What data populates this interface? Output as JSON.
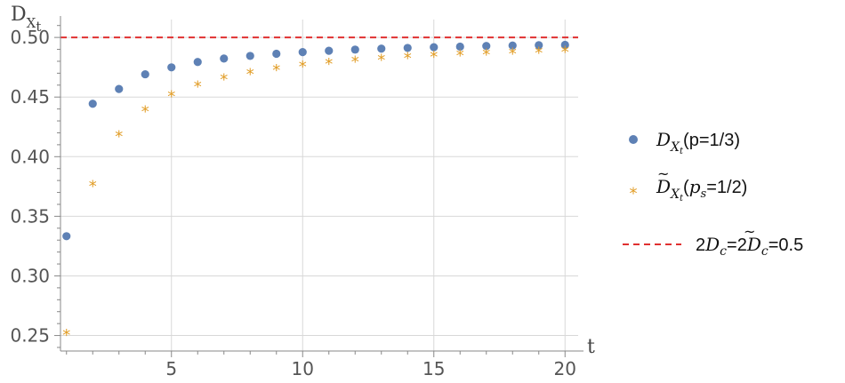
{
  "chart_data": {
    "type": "scatter",
    "title": "",
    "xlabel": "t",
    "ylabel": {
      "main": "D",
      "sub": "X",
      "subsub": "t"
    },
    "xlim": [
      0.5,
      20.5
    ],
    "ylim": [
      0.237,
      0.515
    ],
    "x_ticks": [
      5,
      10,
      15,
      20
    ],
    "y_ticks": [
      0.25,
      0.3,
      0.35,
      0.4,
      0.45,
      0.5
    ],
    "y_tick_labels": [
      "0.25",
      "0.30",
      "0.35",
      "0.40",
      "0.45",
      "0.50"
    ],
    "grid": true,
    "legend_position": "right",
    "series": [
      {
        "legend": {
          "main": "D",
          "sub": "X",
          "subsub": "t",
          "rest": "(p=1/3)"
        },
        "marker": "circle",
        "color": "#5E81B5",
        "x": [
          1,
          2,
          3,
          4,
          5,
          6,
          7,
          8,
          9,
          10,
          11,
          12,
          13,
          14,
          15,
          16,
          17,
          18,
          19,
          20
        ],
        "y": [
          0.3333,
          0.4444,
          0.4568,
          0.4691,
          0.4749,
          0.4794,
          0.4823,
          0.4845,
          0.4863,
          0.4877,
          0.4888,
          0.4898,
          0.4906,
          0.4912,
          0.4918,
          0.4923,
          0.4928,
          0.4932,
          0.4935,
          0.4938
        ]
      },
      {
        "legend": {
          "main": "D",
          "sub": "X",
          "subsub": "t",
          "paren_open": "(",
          "p": "p",
          "psub": "s",
          "rest": "=1/2)"
        },
        "marker": "star",
        "color": "#E19C24",
        "x": [
          1,
          2,
          3,
          4,
          5,
          6,
          7,
          8,
          9,
          10,
          11,
          12,
          13,
          14,
          15,
          16,
          17,
          18,
          19,
          20
        ],
        "y": [
          0.25,
          0.375,
          0.4167,
          0.4375,
          0.45,
          0.4583,
          0.4643,
          0.4688,
          0.4722,
          0.475,
          0.4773,
          0.4792,
          0.4808,
          0.4821,
          0.4833,
          0.4844,
          0.4853,
          0.4861,
          0.4868,
          0.4875
        ]
      },
      {
        "legend": {
          "two1": "2",
          "D1": "D",
          "c1": "c",
          "eq": "=2",
          "D2": "D",
          "c2": "c",
          "rest": "=0.5"
        },
        "marker": "dashed-line",
        "color": "#E03030",
        "y": 0.5
      }
    ]
  }
}
